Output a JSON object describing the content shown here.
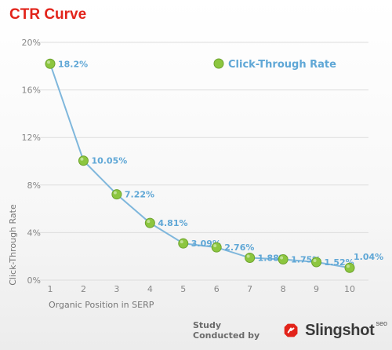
{
  "title": "CTR Curve",
  "footer": {
    "credit": "Study Conducted by",
    "brand": "Slingshot",
    "brand_sup": "seo"
  },
  "colors": {
    "title": "#e2231a",
    "line": "#7fb7dc",
    "point": "#8cc63f",
    "label": "#5fa7d6",
    "grid": "#dddddd"
  },
  "chart_data": {
    "type": "line",
    "xlabel": "Organic Position in SERP",
    "ylabel": "Click-Through Rate",
    "x": [
      1,
      2,
      3,
      4,
      5,
      6,
      7,
      8,
      9,
      10
    ],
    "series": [
      {
        "name": "Click-Through Rate",
        "values": [
          18.2,
          10.05,
          7.22,
          4.81,
          3.09,
          2.76,
          1.88,
          1.75,
          1.52,
          1.04
        ],
        "labels": [
          "18.2%",
          "10.05%",
          "7.22%",
          "4.81%",
          "3.09%",
          "2.76%",
          "1.88%",
          "1.75%",
          "1.52%",
          "1.04%"
        ]
      }
    ],
    "ylim": [
      0,
      20
    ],
    "yticks": [
      0,
      4,
      8,
      12,
      16,
      20
    ],
    "ytick_labels": [
      "0%",
      "4%",
      "8%",
      "12%",
      "16%",
      "20%"
    ],
    "xtick_labels": [
      "1",
      "2",
      "3",
      "4",
      "5",
      "6",
      "7",
      "8",
      "9",
      "10"
    ],
    "grid": true,
    "legend": "top-right"
  }
}
